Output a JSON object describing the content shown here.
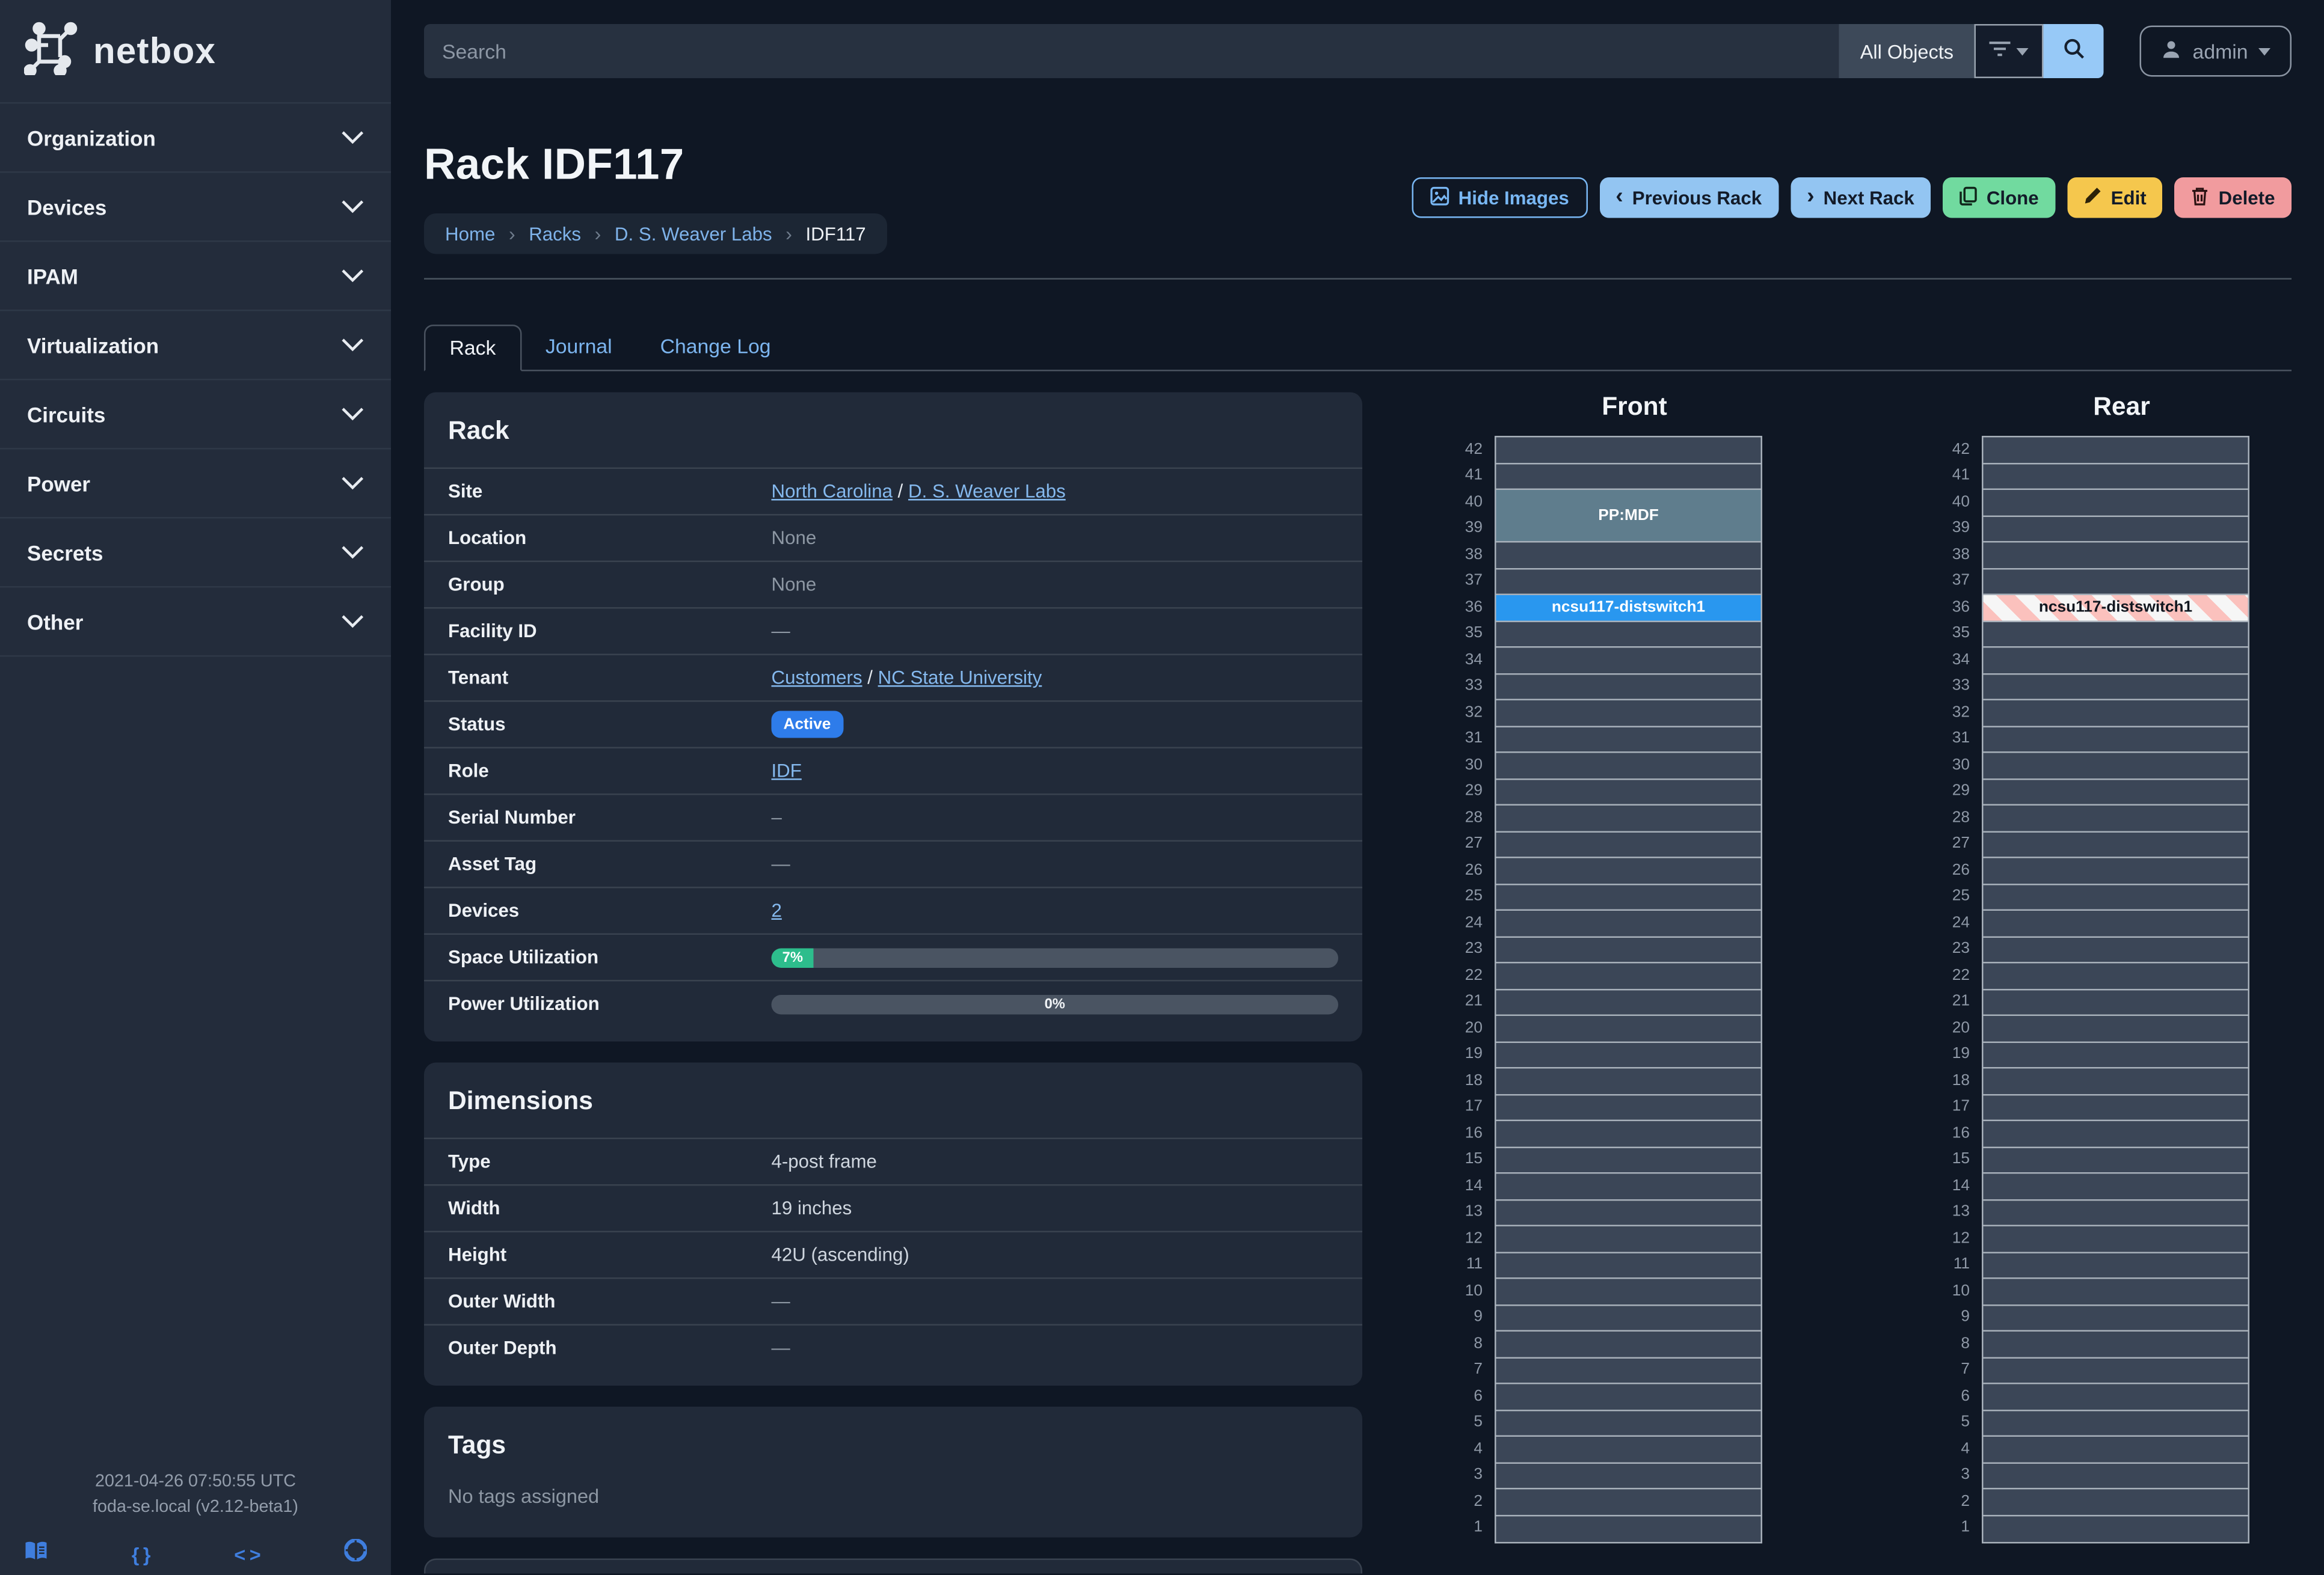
{
  "brand": {
    "name": "netbox"
  },
  "sidebar": {
    "items": [
      {
        "label": "Organization"
      },
      {
        "label": "Devices"
      },
      {
        "label": "IPAM"
      },
      {
        "label": "Virtualization"
      },
      {
        "label": "Circuits"
      },
      {
        "label": "Power"
      },
      {
        "label": "Secrets"
      },
      {
        "label": "Other"
      }
    ],
    "footer": {
      "timestamp": "2021-04-26 07:50:55 UTC",
      "host_version": "foda-se.local (v2.12-beta1)",
      "icons": [
        "docs-icon",
        "rest-api-icon",
        "code-icon",
        "help-icon"
      ]
    }
  },
  "header": {
    "search_placeholder": "Search",
    "scope": "All Objects",
    "user": "admin"
  },
  "page": {
    "title": "Rack IDF117",
    "breadcrumbs": [
      {
        "label": "Home",
        "link": true
      },
      {
        "label": "Racks",
        "link": true
      },
      {
        "label": "D. S. Weaver Labs",
        "link": true
      },
      {
        "label": "IDF117",
        "link": false
      }
    ],
    "actions": {
      "hide_images": "Hide Images",
      "previous": "Previous Rack",
      "next": "Next Rack",
      "clone": "Clone",
      "edit": "Edit",
      "delete": "Delete"
    },
    "tabs": [
      {
        "label": "Rack",
        "active": true
      },
      {
        "label": "Journal",
        "active": false
      },
      {
        "label": "Change Log",
        "active": false
      }
    ]
  },
  "rack_panel": {
    "title": "Rack",
    "rows": [
      {
        "label": "Site",
        "type": "links",
        "parts": [
          "North Carolina",
          "D. S. Weaver Labs"
        ]
      },
      {
        "label": "Location",
        "type": "muted",
        "value": "None"
      },
      {
        "label": "Group",
        "type": "muted",
        "value": "None"
      },
      {
        "label": "Facility ID",
        "type": "dash",
        "value": "—"
      },
      {
        "label": "Tenant",
        "type": "links",
        "parts": [
          "Customers",
          "NC State University"
        ]
      },
      {
        "label": "Status",
        "type": "badge",
        "value": "Active"
      },
      {
        "label": "Role",
        "type": "link",
        "value": "IDF"
      },
      {
        "label": "Serial Number",
        "type": "dash",
        "value": "–"
      },
      {
        "label": "Asset Tag",
        "type": "dash",
        "value": "—"
      },
      {
        "label": "Devices",
        "type": "link",
        "value": "2"
      },
      {
        "label": "Space Utilization",
        "type": "progress",
        "pct": 7,
        "text": "7%"
      },
      {
        "label": "Power Utilization",
        "type": "progress",
        "pct": 0,
        "text": "0%"
      }
    ]
  },
  "dimensions_panel": {
    "title": "Dimensions",
    "rows": [
      {
        "label": "Type",
        "type": "text",
        "value": "4-post frame"
      },
      {
        "label": "Width",
        "type": "text",
        "value": "19 inches"
      },
      {
        "label": "Height",
        "type": "text",
        "value": "42U (ascending)"
      },
      {
        "label": "Outer Width",
        "type": "dash",
        "value": "—"
      },
      {
        "label": "Outer Depth",
        "type": "dash",
        "value": "—"
      }
    ]
  },
  "tags_panel": {
    "title": "Tags",
    "empty": "No tags assigned"
  },
  "elevations": {
    "units_max": 42,
    "units_min": 1,
    "front": {
      "title": "Front",
      "devices": [
        {
          "name": "PP:MDF",
          "top_unit": 40,
          "u_height": 2,
          "style": "teal"
        },
        {
          "name": "ncsu117-distswitch1",
          "top_unit": 36,
          "u_height": 1,
          "style": "blue"
        }
      ]
    },
    "rear": {
      "title": "Rear",
      "devices": [
        {
          "name": "ncsu117-distswitch1",
          "top_unit": 36,
          "u_height": 1,
          "style": "striped"
        }
      ]
    }
  },
  "colors": {
    "status_badge": "#2e7cea",
    "device_blue": "#2997ef",
    "device_teal": "#5f7d8d",
    "stripe_pink": "#fbc1bd",
    "link": "#85b9ee",
    "space_util_fill": "#2dbd8c",
    "btn_blue": "#93c5f2",
    "btn_green": "#71da9f",
    "btn_yellow": "#f5c74d",
    "btn_red": "#f19b9e"
  }
}
